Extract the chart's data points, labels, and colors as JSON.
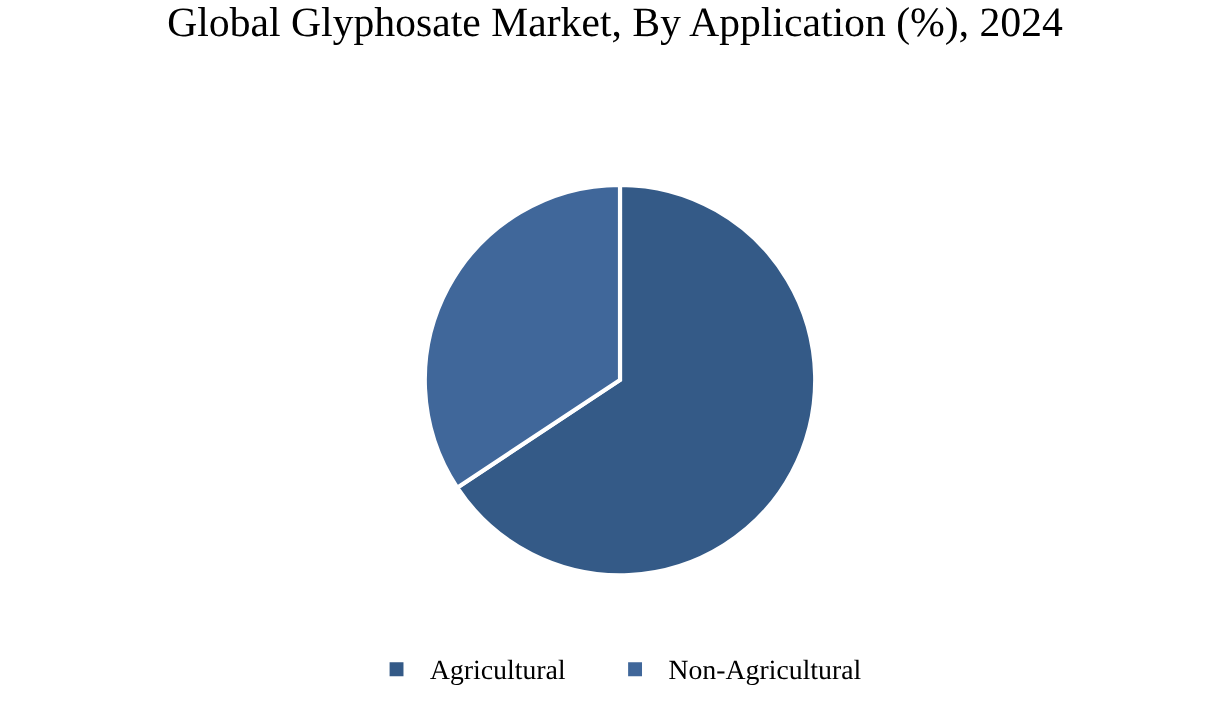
{
  "chart_data": {
    "type": "pie",
    "title": "Global Glyphosate Market, By Application (%), 2024",
    "categories": [
      "Agricultural",
      "Non-Agricultural"
    ],
    "values": [
      65.7,
      34.3
    ],
    "colors": [
      "#345a87",
      "#40679a"
    ],
    "legend": "bottom"
  }
}
